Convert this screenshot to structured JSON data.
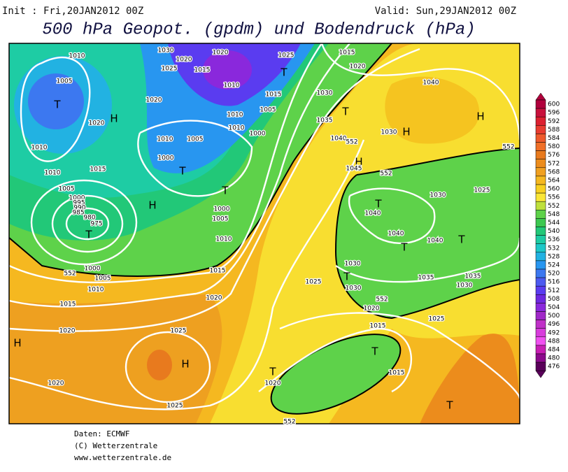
{
  "header": {
    "init": "Init : Fri,20JAN2012  00Z",
    "valid": "Valid: Sun,29JAN2012  00Z",
    "title": "500 hPa Geopot. (gpdm) und Bodendruck (hPa)"
  },
  "map_labels": [
    "1010",
    "1005",
    "T",
    "H",
    "1020",
    "1020",
    "1030",
    "1020",
    "1020",
    "1025",
    "1015",
    "1010",
    "1015",
    "1005",
    "1000",
    "1010",
    "1010",
    "1010",
    "1005",
    "1000",
    "T",
    "T",
    "1010",
    "1015",
    "1010",
    "1005",
    "H",
    "T",
    "1000",
    "1005",
    "1010",
    "1000",
    "1005",
    "1010",
    "1015",
    "1015",
    "1020",
    "1020",
    "1025",
    "H",
    "H",
    "1020",
    "1025",
    "1030",
    "1035",
    "1025",
    "1015",
    "1020",
    "T",
    "T",
    "H",
    "1040",
    "1030",
    "H",
    "H",
    "1045",
    "1040",
    "T",
    "1040",
    "1030",
    "1025",
    "1040",
    "1040",
    "T",
    "T",
    "1030",
    "T",
    "1030",
    "1035",
    "1030",
    "1035",
    "1025",
    "1020",
    "1025",
    "1015",
    "T",
    "1015",
    "T",
    "1020",
    "T",
    "552",
    "552",
    "552",
    "552",
    "552",
    "552",
    "1000",
    "995",
    "990",
    "985",
    "980",
    "975"
  ],
  "colorbar": {
    "ticks": [
      600,
      596,
      592,
      588,
      584,
      580,
      576,
      572,
      568,
      564,
      560,
      556,
      552,
      548,
      544,
      540,
      536,
      532,
      528,
      524,
      520,
      516,
      512,
      508,
      504,
      500,
      496,
      492,
      488,
      484,
      480,
      476
    ],
    "colors": [
      "#b0003c",
      "#c8103c",
      "#dc2030",
      "#e83c30",
      "#ee5a2c",
      "#f07028",
      "#e87a1e",
      "#ec8c1c",
      "#f0a020",
      "#f5b820",
      "#f8d020",
      "#fae636",
      "#bfe03c",
      "#5ed24a",
      "#3cc850",
      "#22c878",
      "#1ecca4",
      "#1ec8c8",
      "#22b2e2",
      "#2896f0",
      "#3c78f0",
      "#4c5af0",
      "#5a3cf0",
      "#6e28e0",
      "#8a28dc",
      "#a028c8",
      "#c030c8",
      "#d83cdc",
      "#f050f0",
      "#c81eb4",
      "#8c0a8c",
      "#5a005a"
    ]
  },
  "footer": [
    "Daten: ECMWF",
    "(C) Wetterzentrale",
    "www.wetterzentrale.de"
  ]
}
